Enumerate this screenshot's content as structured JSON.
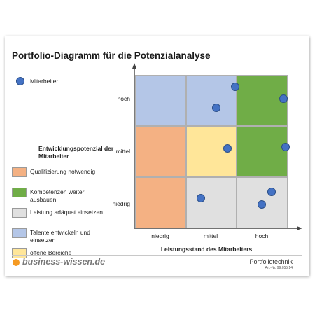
{
  "title": "Portfolio-Diagramm für die Potenzialanalyse",
  "axes": {
    "y_label": "Entwicklungspotenzial der Mitarbeiter",
    "x_label": "Leistungsstand des Mitarbeiters",
    "y_ticks": [
      "niedrig",
      "mittel",
      "hoch"
    ],
    "x_ticks": [
      "niedrig",
      "mittel",
      "hoch"
    ]
  },
  "colors": {
    "red": "#f4b183",
    "green": "#70ad47",
    "gray": "#e0e0e0",
    "blue": "#b4c6e7",
    "yellow": "#ffe699",
    "dot": "#4472c4",
    "brand": "#f59a23"
  },
  "grid": [
    [
      "blue",
      "blue",
      "green"
    ],
    [
      "red",
      "yellow",
      "green"
    ],
    [
      "red",
      "gray",
      "gray"
    ]
  ],
  "employees_legend": "Mitarbeiter",
  "legend": [
    {
      "color": "red",
      "label": "Qualifizierung notwendig"
    },
    {
      "color": "green",
      "label": "Kompetenzen weiter ausbauen"
    },
    {
      "color": "gray",
      "label": "Leistung adäquat einsetzen"
    },
    {
      "color": "blue",
      "label": "Talente entwickeln und einsetzen"
    },
    {
      "color": "yellow",
      "label": "offene Bereiche"
    }
  ],
  "employees": [
    {
      "performance": 1.97,
      "potential": 2.77
    },
    {
      "performance": 1.59,
      "potential": 2.35
    },
    {
      "performance": 2.92,
      "potential": 2.53
    },
    {
      "performance": 1.82,
      "potential": 1.56
    },
    {
      "performance": 2.96,
      "potential": 1.59
    },
    {
      "performance": 1.29,
      "potential": 0.59
    },
    {
      "performance": 2.68,
      "potential": 0.71
    },
    {
      "performance": 2.49,
      "potential": 0.46
    }
  ],
  "footer": {
    "brand": "business-wissen.de",
    "title": "Portfoliotechnik",
    "art_nr": "Art.-Nr. 99.055.14"
  }
}
